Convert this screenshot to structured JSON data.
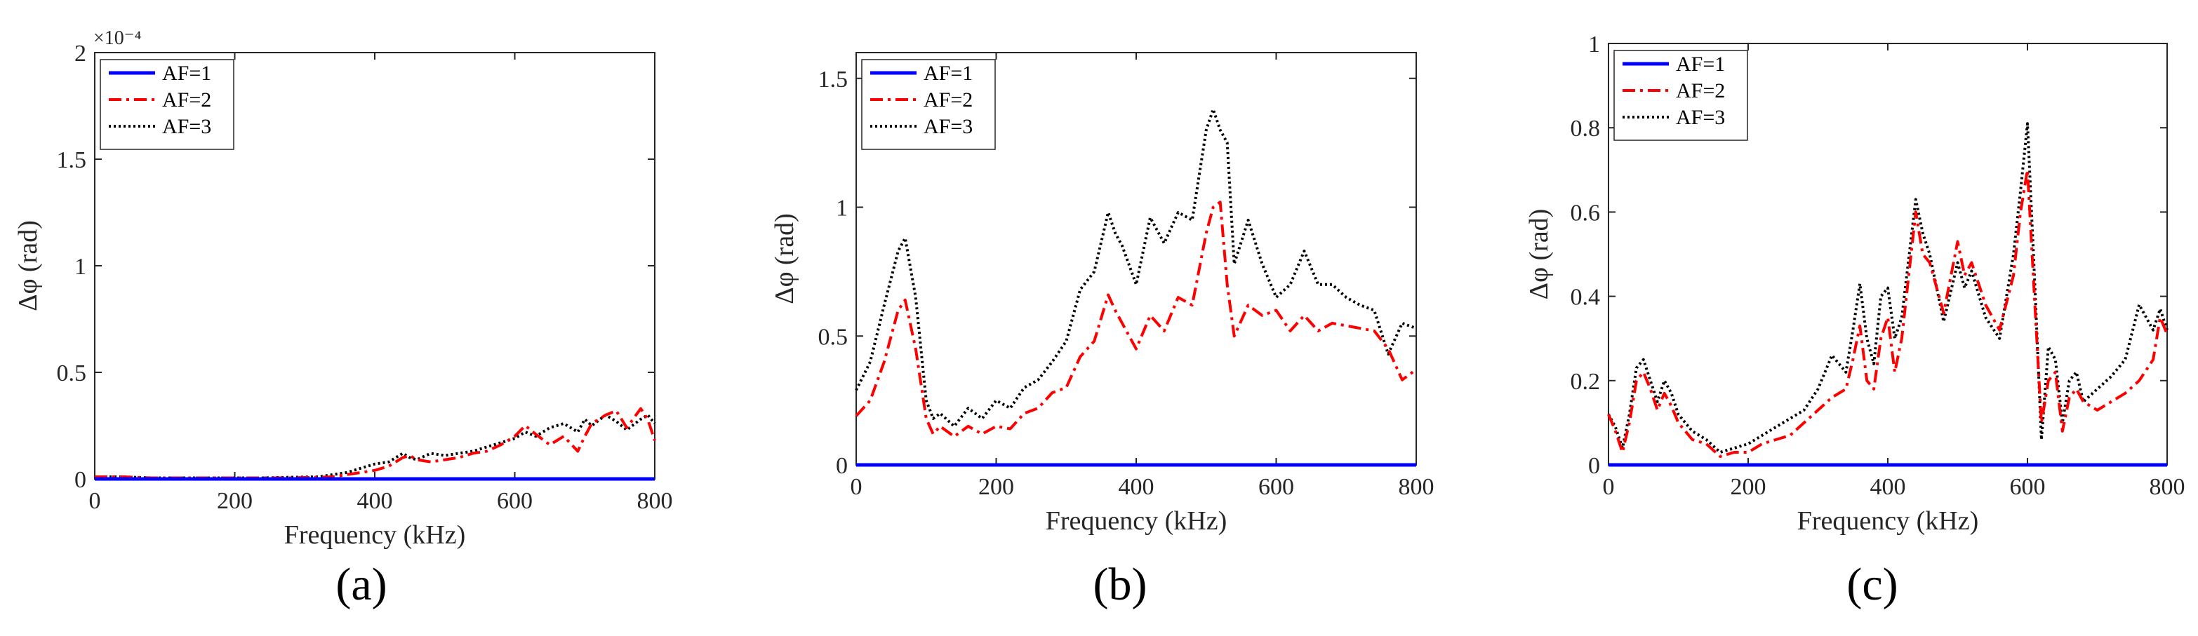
{
  "figure": {
    "panels": [
      "a",
      "b",
      "c"
    ]
  },
  "chart_data": [
    {
      "type": "line",
      "caption": "(a)",
      "xlabel": "Frequency (kHz)",
      "ylabel": "Δφ (rad)",
      "xlim": [
        0,
        800
      ],
      "ylim": [
        0,
        2
      ],
      "xticks": [
        0,
        200,
        400,
        600,
        800
      ],
      "xtick_labels": [
        "0",
        "200",
        "400",
        "600",
        "800"
      ],
      "yticks": [
        0,
        0.5,
        1,
        1.5,
        2
      ],
      "ytick_labels": [
        "0",
        "0.5",
        "1",
        "1.5",
        "2"
      ],
      "y_exponent_label": "×10⁻⁴",
      "legend_position": "top-left",
      "series": [
        {
          "name": "AF=1",
          "color": "#0000ff",
          "style": "solid",
          "x": [
            0,
            100,
            200,
            300,
            400,
            500,
            600,
            700,
            800
          ],
          "y": [
            0,
            0,
            0,
            0,
            0,
            0,
            0,
            0,
            0
          ]
        },
        {
          "name": "AF=2",
          "color": "#ff0000",
          "style": "dashdot",
          "x": [
            0,
            40,
            80,
            120,
            160,
            200,
            240,
            280,
            320,
            340,
            360,
            380,
            400,
            420,
            440,
            450,
            460,
            480,
            500,
            520,
            540,
            560,
            580,
            600,
            615,
            630,
            650,
            670,
            690,
            700,
            710,
            730,
            745,
            760,
            780,
            790,
            800
          ],
          "y": [
            0.01,
            0.01,
            0.005,
            0.005,
            0.005,
            0.005,
            0.005,
            0.005,
            0.008,
            0.01,
            0.02,
            0.03,
            0.04,
            0.06,
            0.1,
            0.11,
            0.09,
            0.08,
            0.09,
            0.1,
            0.12,
            0.13,
            0.16,
            0.2,
            0.25,
            0.21,
            0.16,
            0.2,
            0.13,
            0.2,
            0.26,
            0.3,
            0.32,
            0.24,
            0.33,
            0.28,
            0.18
          ]
        },
        {
          "name": "AF=3",
          "color": "#000000",
          "style": "dotted",
          "x": [
            0,
            40,
            80,
            120,
            160,
            200,
            240,
            280,
            320,
            340,
            360,
            380,
            400,
            420,
            440,
            450,
            460,
            480,
            500,
            520,
            540,
            560,
            580,
            600,
            615,
            630,
            650,
            670,
            690,
            700,
            710,
            730,
            745,
            760,
            780,
            790,
            800
          ],
          "y": [
            0.01,
            0.01,
            0.005,
            0.005,
            0.005,
            0.005,
            0.005,
            0.008,
            0.01,
            0.02,
            0.03,
            0.05,
            0.07,
            0.08,
            0.12,
            0.1,
            0.09,
            0.12,
            0.11,
            0.12,
            0.13,
            0.15,
            0.17,
            0.19,
            0.22,
            0.2,
            0.24,
            0.26,
            0.22,
            0.28,
            0.25,
            0.3,
            0.27,
            0.23,
            0.28,
            0.3,
            0.26
          ]
        }
      ]
    },
    {
      "type": "line",
      "caption": "(b)",
      "xlabel": "Frequency (kHz)",
      "ylabel": "Δφ (rad)",
      "xlim": [
        0,
        800
      ],
      "ylim": [
        0,
        1.6
      ],
      "xticks": [
        0,
        200,
        400,
        600,
        800
      ],
      "xtick_labels": [
        "0",
        "200",
        "400",
        "600",
        "800"
      ],
      "yticks": [
        0,
        0.5,
        1,
        1.5
      ],
      "ytick_labels": [
        "0",
        "0.5",
        "1",
        "1.5"
      ],
      "legend_position": "top-left",
      "series": [
        {
          "name": "AF=1",
          "color": "#0000ff",
          "style": "solid",
          "x": [
            0,
            100,
            200,
            300,
            400,
            500,
            600,
            700,
            800
          ],
          "y": [
            0,
            0,
            0,
            0,
            0,
            0,
            0,
            0,
            0
          ]
        },
        {
          "name": "AF=2",
          "color": "#ff0000",
          "style": "dashdot",
          "x": [
            0,
            20,
            40,
            60,
            70,
            85,
            100,
            110,
            120,
            140,
            160,
            180,
            200,
            220,
            240,
            260,
            280,
            300,
            320,
            340,
            360,
            370,
            380,
            400,
            420,
            440,
            460,
            480,
            500,
            510,
            520,
            530,
            540,
            560,
            580,
            600,
            620,
            640,
            660,
            680,
            700,
            720,
            740,
            760,
            780,
            800
          ],
          "y": [
            0.19,
            0.25,
            0.4,
            0.6,
            0.64,
            0.45,
            0.18,
            0.12,
            0.15,
            0.11,
            0.15,
            0.12,
            0.15,
            0.14,
            0.2,
            0.22,
            0.28,
            0.3,
            0.42,
            0.48,
            0.66,
            0.6,
            0.55,
            0.45,
            0.58,
            0.52,
            0.65,
            0.62,
            0.9,
            1.0,
            1.02,
            0.7,
            0.5,
            0.62,
            0.58,
            0.6,
            0.52,
            0.58,
            0.52,
            0.55,
            0.54,
            0.53,
            0.52,
            0.45,
            0.33,
            0.37
          ]
        },
        {
          "name": "AF=3",
          "color": "#000000",
          "style": "dotted",
          "x": [
            0,
            20,
            40,
            60,
            70,
            85,
            100,
            110,
            120,
            140,
            160,
            180,
            200,
            220,
            240,
            260,
            280,
            300,
            320,
            340,
            360,
            370,
            380,
            400,
            420,
            440,
            460,
            480,
            500,
            510,
            520,
            530,
            540,
            560,
            580,
            600,
            620,
            640,
            660,
            680,
            700,
            720,
            740,
            760,
            780,
            800
          ],
          "y": [
            0.29,
            0.4,
            0.62,
            0.83,
            0.88,
            0.65,
            0.25,
            0.18,
            0.2,
            0.15,
            0.22,
            0.18,
            0.25,
            0.22,
            0.3,
            0.33,
            0.4,
            0.48,
            0.68,
            0.75,
            0.98,
            0.9,
            0.85,
            0.7,
            0.96,
            0.86,
            0.98,
            0.95,
            1.3,
            1.38,
            1.3,
            1.25,
            0.78,
            0.95,
            0.78,
            0.65,
            0.7,
            0.83,
            0.7,
            0.7,
            0.65,
            0.62,
            0.6,
            0.43,
            0.55,
            0.53
          ]
        }
      ]
    },
    {
      "type": "line",
      "caption": "(c)",
      "xlabel": "Frequency (kHz)",
      "ylabel": "Δφ (rad)",
      "xlim": [
        0,
        800
      ],
      "ylim": [
        0,
        1
      ],
      "xticks": [
        0,
        200,
        400,
        600,
        800
      ],
      "xtick_labels": [
        "0",
        "200",
        "400",
        "600",
        "800"
      ],
      "yticks": [
        0,
        0.2,
        0.4,
        0.6,
        0.8,
        1
      ],
      "ytick_labels": [
        "0",
        "0.2",
        "0.4",
        "0.6",
        "0.8",
        "1"
      ],
      "legend_position": "top-left",
      "series": [
        {
          "name": "AF=1",
          "color": "#0000ff",
          "style": "solid",
          "x": [
            0,
            100,
            200,
            300,
            400,
            500,
            600,
            700,
            800
          ],
          "y": [
            0,
            0,
            0,
            0,
            0,
            0,
            0,
            0,
            0
          ]
        },
        {
          "name": "AF=2",
          "color": "#ff0000",
          "style": "dashdot",
          "x": [
            0,
            10,
            20,
            30,
            40,
            50,
            60,
            70,
            80,
            90,
            100,
            120,
            140,
            160,
            180,
            200,
            220,
            240,
            260,
            280,
            300,
            320,
            340,
            350,
            360,
            370,
            380,
            390,
            400,
            410,
            420,
            440,
            450,
            460,
            480,
            500,
            510,
            520,
            540,
            560,
            580,
            590,
            600,
            610,
            620,
            630,
            640,
            650,
            660,
            670,
            680,
            700,
            720,
            740,
            760,
            780,
            790,
            800
          ],
          "y": [
            0.12,
            0.08,
            0.03,
            0.1,
            0.2,
            0.22,
            0.18,
            0.13,
            0.17,
            0.14,
            0.1,
            0.06,
            0.05,
            0.02,
            0.03,
            0.03,
            0.05,
            0.06,
            0.07,
            0.1,
            0.13,
            0.16,
            0.18,
            0.25,
            0.33,
            0.2,
            0.18,
            0.3,
            0.35,
            0.22,
            0.3,
            0.6,
            0.5,
            0.48,
            0.36,
            0.53,
            0.45,
            0.48,
            0.38,
            0.32,
            0.45,
            0.6,
            0.7,
            0.4,
            0.1,
            0.2,
            0.22,
            0.08,
            0.16,
            0.18,
            0.15,
            0.13,
            0.15,
            0.17,
            0.2,
            0.25,
            0.35,
            0.31
          ]
        },
        {
          "name": "AF=3",
          "color": "#000000",
          "style": "dotted",
          "x": [
            0,
            10,
            20,
            30,
            40,
            50,
            60,
            70,
            80,
            90,
            100,
            120,
            140,
            160,
            180,
            200,
            220,
            240,
            260,
            280,
            300,
            320,
            340,
            350,
            360,
            370,
            380,
            390,
            400,
            410,
            420,
            440,
            450,
            460,
            480,
            500,
            510,
            520,
            540,
            560,
            580,
            590,
            600,
            610,
            620,
            630,
            640,
            650,
            660,
            670,
            680,
            700,
            720,
            740,
            760,
            780,
            790,
            800
          ],
          "y": [
            0.12,
            0.09,
            0.04,
            0.12,
            0.23,
            0.25,
            0.2,
            0.15,
            0.2,
            0.17,
            0.12,
            0.08,
            0.06,
            0.03,
            0.04,
            0.05,
            0.07,
            0.09,
            0.11,
            0.13,
            0.18,
            0.26,
            0.22,
            0.32,
            0.43,
            0.3,
            0.24,
            0.4,
            0.42,
            0.3,
            0.35,
            0.63,
            0.55,
            0.5,
            0.34,
            0.48,
            0.42,
            0.46,
            0.35,
            0.3,
            0.5,
            0.65,
            0.81,
            0.45,
            0.06,
            0.28,
            0.25,
            0.1,
            0.2,
            0.22,
            0.15,
            0.18,
            0.21,
            0.25,
            0.38,
            0.32,
            0.37,
            0.32
          ]
        }
      ]
    }
  ]
}
